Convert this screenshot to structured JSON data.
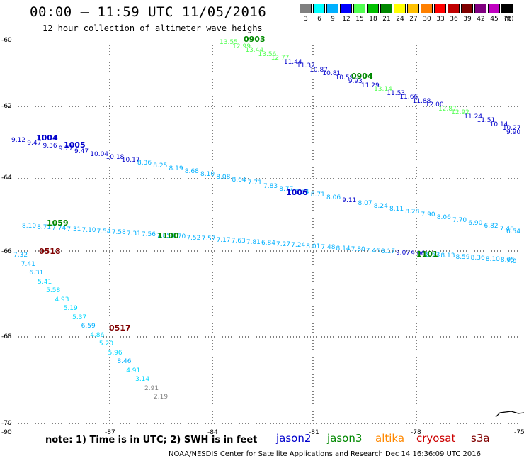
{
  "header": {
    "title": "00:00 – 11:59 UTC 11/05/2016",
    "subtitle": "12 hour collection of altimeter wave heighs"
  },
  "color_scale": {
    "unit": "(ft)",
    "swatches": [
      {
        "label": "3",
        "color": "#808080"
      },
      {
        "label": "6",
        "color": "#00ffff"
      },
      {
        "label": "9",
        "color": "#00b0ff"
      },
      {
        "label": "12",
        "color": "#0000ff"
      },
      {
        "label": "15",
        "color": "#50ff50"
      },
      {
        "label": "18",
        "color": "#00c000"
      },
      {
        "label": "21",
        "color": "#008800"
      },
      {
        "label": "24",
        "color": "#ffff00"
      },
      {
        "label": "27",
        "color": "#ffc000"
      },
      {
        "label": "30",
        "color": "#ff8000"
      },
      {
        "label": "33",
        "color": "#ff0000"
      },
      {
        "label": "36",
        "color": "#c00000"
      },
      {
        "label": "39",
        "color": "#800000"
      },
      {
        "label": "42",
        "color": "#800080"
      },
      {
        "label": "45",
        "color": "#c000c0"
      },
      {
        "label": "70",
        "color": "#000000"
      }
    ]
  },
  "axes": {
    "lat_labels": [
      "-60",
      "-62",
      "-64",
      "-66",
      "-68",
      "-70"
    ],
    "lon_labels": [
      "-90",
      "-87",
      "-84",
      "-81",
      "-78",
      "-75"
    ]
  },
  "note": "note: 1) Time is in UTC; 2) SWH is in feet",
  "satellites": [
    {
      "name": "jason2",
      "color": "#0000cc"
    },
    {
      "name": "jason3",
      "color": "#008800"
    },
    {
      "name": "altika",
      "color": "#ff8800"
    },
    {
      "name": "cryosat",
      "color": "#cc0000"
    },
    {
      "name": "s3a",
      "color": "#800000"
    }
  ],
  "footer": "NOAA/NESDIS Center for Satellite Applications and Research    Dec 14 16:36:09 UTC 2016",
  "tracks": [
    {
      "time": "0903",
      "time_color": "#008800",
      "values": [
        {
          "v": "13.55",
          "c": "#50ff50"
        },
        {
          "v": "12.99",
          "c": "#50ff50"
        },
        {
          "v": "13.44",
          "c": "#50ff50"
        },
        {
          "v": "13.56",
          "c": "#50ff50"
        },
        {
          "v": "12.77",
          "c": "#50ff50"
        },
        {
          "v": "11.44",
          "c": "#0000cc"
        },
        {
          "v": "11.37",
          "c": "#0000cc"
        },
        {
          "v": "10.87",
          "c": "#0000cc"
        },
        {
          "v": "10.81",
          "c": "#0000cc"
        },
        {
          "v": "10.59",
          "c": "#0000cc"
        },
        {
          "v": "9.93",
          "c": "#0000cc"
        },
        {
          "v": "11.29",
          "c": "#0000cc"
        },
        {
          "v": "13.14",
          "c": "#50ff50"
        },
        {
          "v": "11.53",
          "c": "#0000cc"
        },
        {
          "v": "11.66",
          "c": "#0000cc"
        },
        {
          "v": "11.88",
          "c": "#0000cc"
        },
        {
          "v": "12.00",
          "c": "#0000cc"
        },
        {
          "v": "12.87",
          "c": "#50ff50"
        },
        {
          "v": "12.92",
          "c": "#50ff50"
        },
        {
          "v": "11.24",
          "c": "#0000cc"
        },
        {
          "v": "11.51",
          "c": "#0000cc"
        },
        {
          "v": "10.14",
          "c": "#0000cc"
        },
        {
          "v": "10.27",
          "c": "#0000cc"
        },
        {
          "v": "9.90",
          "c": "#0000cc"
        }
      ]
    },
    {
      "time": "0904",
      "time_color": "#008800"
    },
    {
      "time": "1004",
      "time_color": "#0000cc",
      "values": [
        {
          "v": "9.12",
          "c": "#0000cc"
        },
        {
          "v": "9.47",
          "c": "#0000cc"
        },
        {
          "v": "9.36",
          "c": "#0000cc"
        },
        {
          "v": "9.77",
          "c": "#0000cc"
        },
        {
          "v": "9.47",
          "c": "#0000cc"
        },
        {
          "v": "10.04",
          "c": "#0000cc"
        },
        {
          "v": "10.18",
          "c": "#0000cc"
        },
        {
          "v": "10.17",
          "c": "#0000cc"
        },
        {
          "v": "8.36",
          "c": "#00b0ff"
        },
        {
          "v": "8.25",
          "c": "#00b0ff"
        },
        {
          "v": "8.19",
          "c": "#00b0ff"
        },
        {
          "v": "8.68",
          "c": "#00b0ff"
        },
        {
          "v": "8.10",
          "c": "#00b0ff"
        },
        {
          "v": "8.08",
          "c": "#00b0ff"
        },
        {
          "v": "8.64",
          "c": "#00b0ff"
        },
        {
          "v": "7.71",
          "c": "#00b0ff"
        },
        {
          "v": "7.83",
          "c": "#00b0ff"
        },
        {
          "v": "8.77",
          "c": "#00b0ff"
        },
        {
          "v": "8.54",
          "c": "#00b0ff"
        },
        {
          "v": "8.71",
          "c": "#00b0ff"
        },
        {
          "v": "8.06",
          "c": "#00b0ff"
        },
        {
          "v": "9.11",
          "c": "#0000cc"
        },
        {
          "v": "8.07",
          "c": "#00b0ff"
        },
        {
          "v": "8.24",
          "c": "#00b0ff"
        },
        {
          "v": "8.11",
          "c": "#00b0ff"
        },
        {
          "v": "8.28",
          "c": "#00b0ff"
        },
        {
          "v": "7.90",
          "c": "#00b0ff"
        },
        {
          "v": "8.06",
          "c": "#00b0ff"
        },
        {
          "v": "7.70",
          "c": "#00b0ff"
        },
        {
          "v": "6.90",
          "c": "#00b0ff"
        },
        {
          "v": "6.82",
          "c": "#00b0ff"
        },
        {
          "v": "7.48",
          "c": "#00b0ff"
        },
        {
          "v": "6.54",
          "c": "#00b0ff"
        }
      ]
    },
    {
      "time": "1005",
      "time_color": "#0000cc"
    },
    {
      "time": "1006",
      "time_color": "#0000cc"
    },
    {
      "time": "1059",
      "time_color": "#008800",
      "values": [
        {
          "v": "8.10",
          "c": "#00b0ff"
        },
        {
          "v": "8.71",
          "c": "#00b0ff"
        },
        {
          "v": "7.74",
          "c": "#00b0ff"
        },
        {
          "v": "7.31",
          "c": "#00b0ff"
        },
        {
          "v": "7.10",
          "c": "#00b0ff"
        },
        {
          "v": "7.54",
          "c": "#00b0ff"
        },
        {
          "v": "7.58",
          "c": "#00b0ff"
        },
        {
          "v": "7.31",
          "c": "#00b0ff"
        },
        {
          "v": "7.56",
          "c": "#00b0ff"
        },
        {
          "v": "7.85",
          "c": "#00b0ff"
        },
        {
          "v": "7.70",
          "c": "#00b0ff"
        },
        {
          "v": "7.52",
          "c": "#00b0ff"
        },
        {
          "v": "7.57",
          "c": "#00b0ff"
        },
        {
          "v": "7.17",
          "c": "#00b0ff"
        },
        {
          "v": "7.63",
          "c": "#00b0ff"
        },
        {
          "v": "7.81",
          "c": "#00b0ff"
        },
        {
          "v": "6.84",
          "c": "#00b0ff"
        },
        {
          "v": "7.27",
          "c": "#00b0ff"
        },
        {
          "v": "7.24",
          "c": "#00b0ff"
        },
        {
          "v": "8.01",
          "c": "#00b0ff"
        },
        {
          "v": "7.48",
          "c": "#00b0ff"
        },
        {
          "v": "8.14",
          "c": "#00b0ff"
        },
        {
          "v": "7.80",
          "c": "#00b0ff"
        },
        {
          "v": "7.46",
          "c": "#00b0ff"
        },
        {
          "v": "8.17",
          "c": "#00b0ff"
        },
        {
          "v": "9.07",
          "c": "#0000cc"
        },
        {
          "v": "9.06",
          "c": "#0000cc"
        },
        {
          "v": "8.53",
          "c": "#00b0ff"
        },
        {
          "v": "8.13",
          "c": "#00b0ff"
        },
        {
          "v": "8.59",
          "c": "#00b0ff"
        },
        {
          "v": "8.36",
          "c": "#00b0ff"
        },
        {
          "v": "8.10",
          "c": "#00b0ff"
        },
        {
          "v": "8.05",
          "c": "#00b0ff"
        },
        {
          "v": "7.0",
          "c": "#00b0ff"
        }
      ]
    },
    {
      "time": "1100",
      "time_color": "#008800"
    },
    {
      "time": "1101",
      "time_color": "#008800"
    },
    {
      "time": "0518",
      "time_color": "#800000",
      "values": [
        {
          "v": "7.32",
          "c": "#00b0ff"
        },
        {
          "v": "7.41",
          "c": "#00b0ff"
        },
        {
          "v": "6.31",
          "c": "#00b0ff"
        },
        {
          "v": "5.41",
          "c": "#00d8ff"
        },
        {
          "v": "5.58",
          "c": "#00d8ff"
        },
        {
          "v": "4.93",
          "c": "#00d8ff"
        },
        {
          "v": "5.19",
          "c": "#00d8ff"
        },
        {
          "v": "5.37",
          "c": "#00d8ff"
        },
        {
          "v": "6.59",
          "c": "#00b0ff"
        },
        {
          "v": "4.86",
          "c": "#00d8ff"
        },
        {
          "v": "5.20",
          "c": "#00d8ff"
        },
        {
          "v": "5.96",
          "c": "#00d8ff"
        },
        {
          "v": "8.46",
          "c": "#00b0ff"
        },
        {
          "v": "4.91",
          "c": "#00d8ff"
        },
        {
          "v": "3.14",
          "c": "#00d8ff"
        },
        {
          "v": "2.91",
          "c": "#808080"
        },
        {
          "v": "2.19",
          "c": "#808080"
        }
      ]
    },
    {
      "time": "0517",
      "time_color": "#800000"
    }
  ]
}
